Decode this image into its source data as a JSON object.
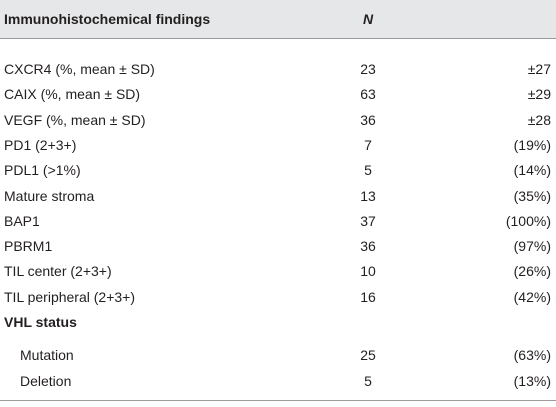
{
  "table": {
    "header": [
      "Immunohistochemical findings",
      "N"
    ],
    "rows": [
      [
        "CXCR4 (%, mean ± SD)",
        23,
        "±27"
      ],
      [
        "CAIX (%, mean ± SD)",
        63,
        "±29"
      ],
      [
        "VEGF (%, mean ± SD)",
        36,
        "±28"
      ],
      [
        "PD1 (2+3+)",
        7,
        "(19%)"
      ],
      [
        "PDL1 (>1%)",
        5,
        "(14%)"
      ],
      [
        "Mature stroma",
        13,
        "(35%)"
      ],
      [
        "BAP1",
        37,
        "(100%)"
      ],
      [
        "PBRM1",
        36,
        "(97%)"
      ],
      [
        "TIL center (2+3+)",
        10,
        "(26%)"
      ],
      [
        "TIL peripheral (2+3+)",
        16,
        "(42%)"
      ]
    ],
    "groups": [
      {
        "title": "VHL status",
        "rows": [
          [
            "Mutation",
            25,
            "(63%)"
          ],
          [
            "Deletion",
            5,
            "(13%)"
          ]
        ]
      }
    ]
  }
}
